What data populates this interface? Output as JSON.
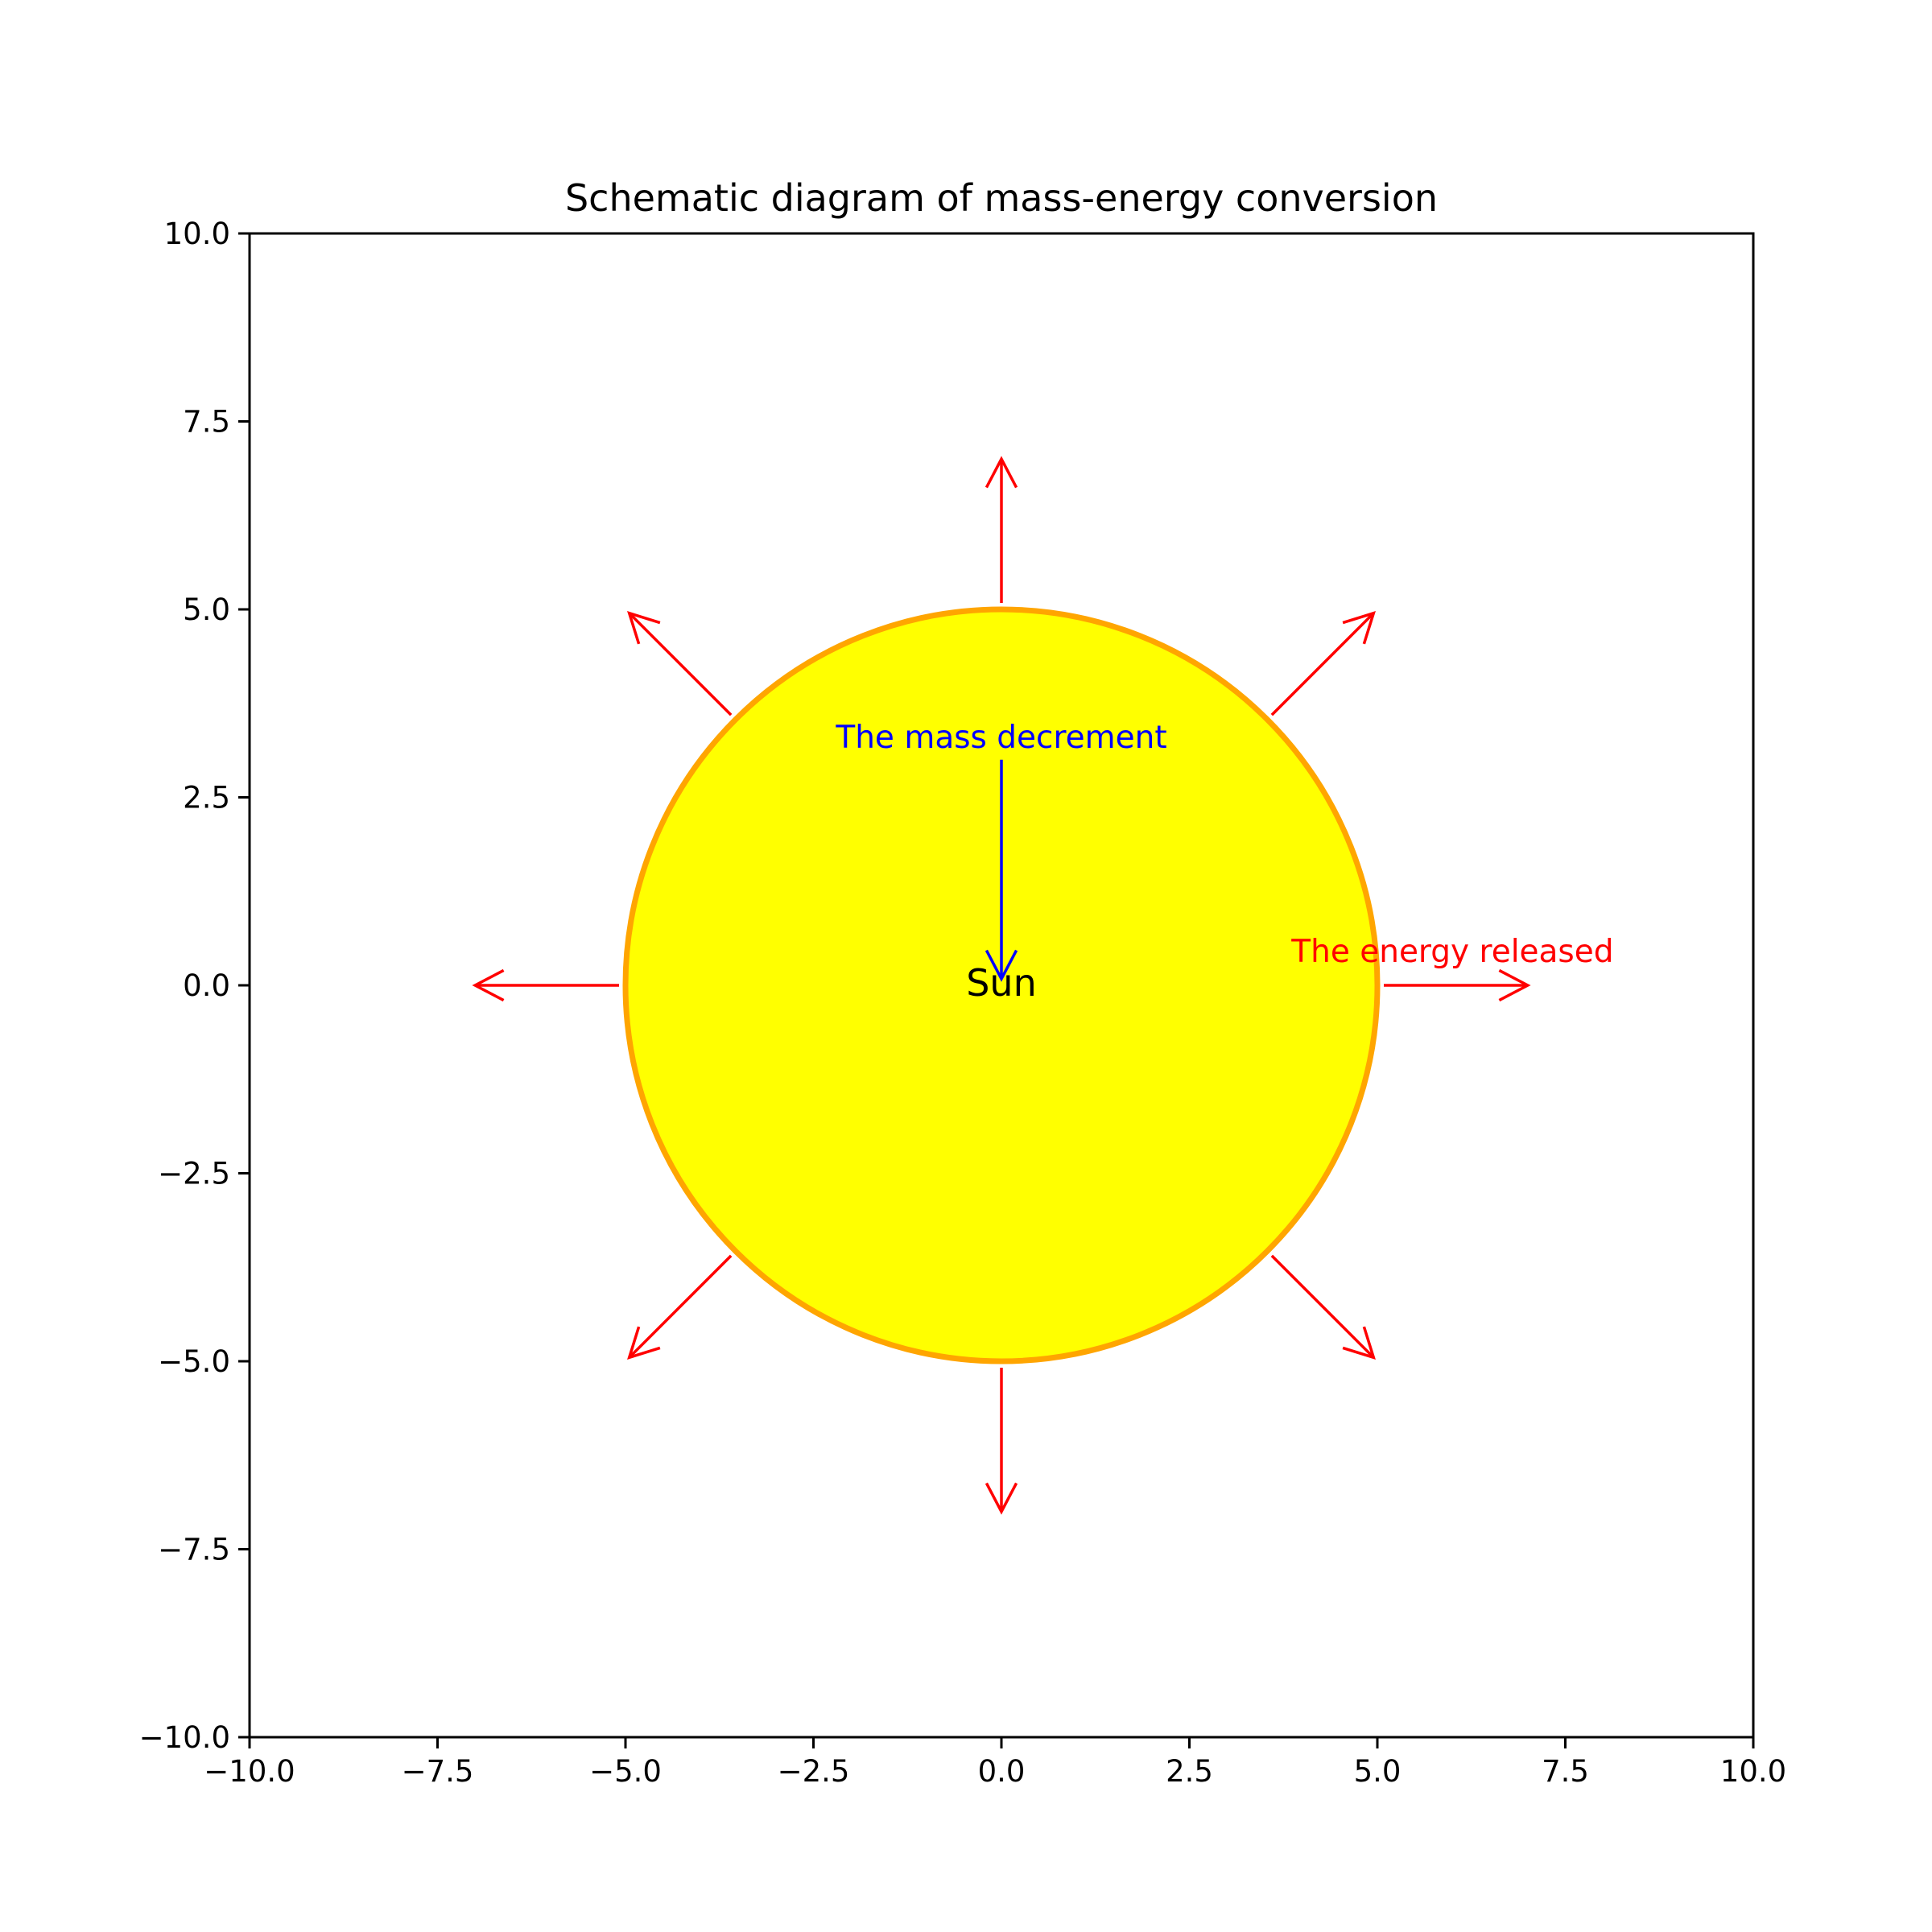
{
  "chart_data": {
    "type": "diagram",
    "title": "Schematic diagram of mass-energy conversion",
    "xlabel": "",
    "ylabel": "",
    "xlim": [
      -10,
      10
    ],
    "ylim": [
      -10,
      10
    ],
    "grid": false,
    "x_ticks": [
      -10.0,
      -7.5,
      -5.0,
      -2.5,
      0.0,
      2.5,
      5.0,
      7.5,
      10.0
    ],
    "y_ticks": [
      -10.0,
      -7.5,
      -5.0,
      -2.5,
      0.0,
      2.5,
      5.0,
      7.5,
      10.0
    ],
    "x_tick_labels": [
      "−10.0",
      "−7.5",
      "−5.0",
      "−2.5",
      "0.0",
      "2.5",
      "5.0",
      "7.5",
      "10.0"
    ],
    "y_tick_labels": [
      "−10.0",
      "−7.5",
      "−5.0",
      "−2.5",
      "0.0",
      "2.5",
      "5.0",
      "7.5",
      "10.0"
    ],
    "sun": {
      "center": [
        0,
        0
      ],
      "radius": 5,
      "fill_color": "#ffff00",
      "edge_color": "#ffa500",
      "label": "Sun",
      "label_color": "#000000"
    },
    "energy_arrows": {
      "color": "#ff0000",
      "start_radius": 5,
      "end_radius": 7,
      "angles_deg": [
        0,
        45,
        90,
        135,
        180,
        225,
        270,
        315
      ]
    },
    "mass_arrow": {
      "color": "#0000ff",
      "from": [
        0,
        3
      ],
      "to": [
        0,
        0
      ]
    },
    "annotations": {
      "mass_decrement": {
        "text": "The mass decrement",
        "color": "#0000ff",
        "x": 0,
        "y": 3.3
      },
      "energy_released": {
        "text": "The energy released",
        "color": "#ff0000",
        "x": 6,
        "y": 0.45
      }
    }
  }
}
